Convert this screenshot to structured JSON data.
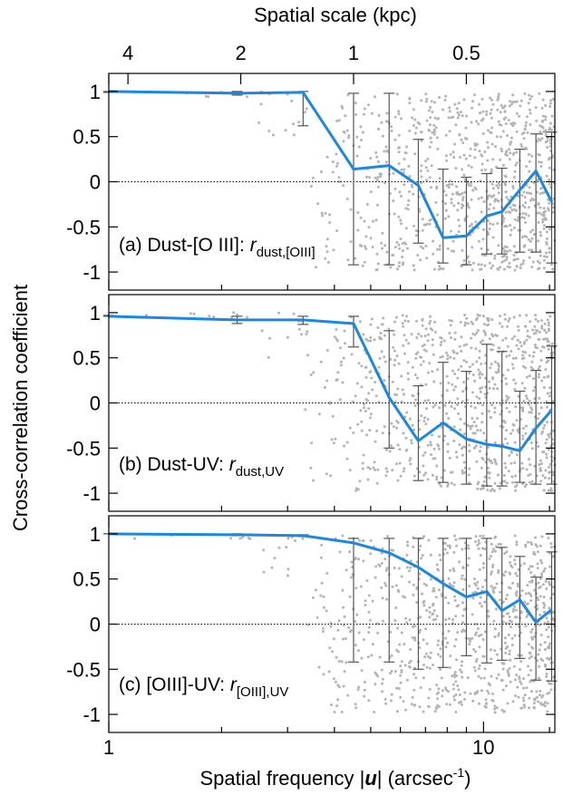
{
  "chart_data": {
    "type": "line",
    "top_axis_label": "Spatial scale (kpc)",
    "top_axis_ticks": [
      "4",
      "2",
      "1",
      "0.5"
    ],
    "top_axis_tick_kpc": [
      4,
      2,
      1,
      0.5
    ],
    "xlabel_prefix": "Spatial frequency |",
    "xlabel_var": "u",
    "xlabel_mid": "| (arcsec",
    "xlabel_exp": "-1",
    "xlabel_suffix": ")",
    "ylabel": "Cross-correlation coefficient",
    "x_scale": "log",
    "xlim": [
      1,
      15.5
    ],
    "x_ticks": [
      "1",
      "10"
    ],
    "x_tick_values": [
      1,
      10
    ],
    "ylim": [
      -1.2,
      1.2
    ],
    "y_ticks": [
      "1",
      "0.5",
      "0",
      "-0.5",
      "-1"
    ],
    "y_tick_values": [
      1,
      0.5,
      0,
      -0.5,
      -1
    ],
    "line_color": "#1a87e6",
    "scatter_color": "#b4b4b4",
    "errorbar_color": "#555555",
    "panels": [
      {
        "label_text": "(a) Dust-[O III]: ",
        "label_r": "r",
        "label_sub": "dust,[OIII]",
        "x": [
          1.0,
          2.2,
          3.3,
          4.5,
          5.6,
          6.7,
          7.8,
          9.0,
          10.2,
          11.2,
          12.5,
          13.8,
          15.2
        ],
        "y": [
          1.0,
          0.98,
          0.99,
          0.14,
          0.18,
          -0.04,
          -0.62,
          -0.6,
          -0.38,
          -0.33,
          -0.09,
          0.12,
          -0.22
        ],
        "err_lo": [
          0.99,
          0.96,
          0.62,
          -0.92,
          -0.92,
          -0.68,
          -0.9,
          -0.92,
          -0.8,
          -0.8,
          -0.78,
          -0.78,
          -0.9
        ],
        "err_hi": [
          1.0,
          1.0,
          1.0,
          0.98,
          0.98,
          0.47,
          0.14,
          0.05,
          0.09,
          0.15,
          0.36,
          0.53,
          0.55
        ]
      },
      {
        "label_text": "(b) Dust-UV: ",
        "label_r": "r",
        "label_sub": "dust,UV",
        "x": [
          1.0,
          2.2,
          3.3,
          4.5,
          5.6,
          6.7,
          7.8,
          9.0,
          10.2,
          11.2,
          12.5,
          13.8,
          15.2
        ],
        "y": [
          0.96,
          0.92,
          0.92,
          0.88,
          0.06,
          -0.42,
          -0.22,
          -0.4,
          -0.46,
          -0.48,
          -0.53,
          -0.28,
          -0.08
        ],
        "err_lo": [
          0.96,
          0.88,
          0.87,
          0.62,
          -0.5,
          -0.86,
          -0.88,
          -0.9,
          -0.92,
          -0.92,
          -0.88,
          -0.9,
          -0.9
        ],
        "err_hi": [
          0.97,
          0.96,
          0.96,
          0.96,
          0.8,
          0.19,
          0.45,
          0.35,
          0.65,
          0.57,
          0.13,
          0.36,
          0.63
        ]
      },
      {
        "label_text": "(c) [OIII]-UV: ",
        "label_r": "r",
        "label_sub": "[OIII],UV",
        "x": [
          1.0,
          2.2,
          3.3,
          4.5,
          5.6,
          6.7,
          7.8,
          9.0,
          10.2,
          11.2,
          12.5,
          13.8,
          15.2
        ],
        "y": [
          1.0,
          0.99,
          0.98,
          0.9,
          0.79,
          0.63,
          0.45,
          0.3,
          0.36,
          0.15,
          0.27,
          0.02,
          0.16
        ],
        "err_lo": [
          1.0,
          0.98,
          0.97,
          -0.42,
          -0.42,
          -0.5,
          -0.48,
          -0.35,
          -0.43,
          -0.4,
          -0.38,
          -0.62,
          -0.63
        ],
        "err_hi": [
          1.0,
          1.0,
          0.99,
          0.95,
          0.95,
          0.95,
          0.95,
          0.95,
          0.95,
          0.85,
          0.75,
          0.52,
          0.8
        ]
      }
    ]
  }
}
